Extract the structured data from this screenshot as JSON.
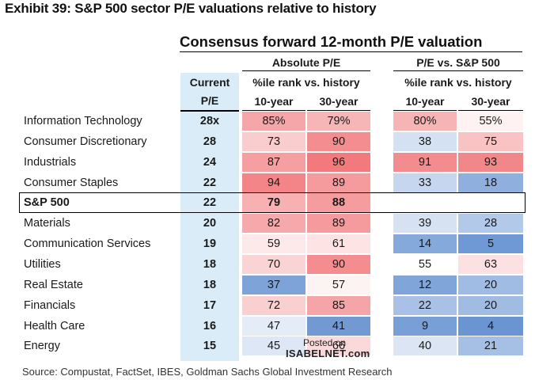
{
  "exhibit_title": "Exhibit 39: S&P 500 sector P/E valuations relative to history",
  "table_title": "Consensus forward 12-month P/E valuation",
  "headers": {
    "current_line1": "Current",
    "current_line2": "P/E",
    "absolute_group": "Absolute P/E",
    "relative_group": "P/E vs. S&P 500",
    "rank_sub": "%ile rank vs. history",
    "ten_year": "10-year",
    "thirty_year": "30-year"
  },
  "rows": [
    {
      "label": "Information Technology",
      "current": "28x",
      "abs10": "85%",
      "abs30": "79%",
      "rel10": "80%",
      "rel30": "55%",
      "colors": [
        "#f4a6a8",
        "#f6b5b6",
        "#f7b4b5",
        "#fff2f2"
      ]
    },
    {
      "label": "Consumer Discretionary",
      "current": "28",
      "abs10": "73",
      "abs30": "90",
      "rel10": "38",
      "rel30": "75",
      "colors": [
        "#f9cccd",
        "#f48d90",
        "#d4e1f2",
        "#f9c3c4"
      ]
    },
    {
      "label": "Industrials",
      "current": "24",
      "abs10": "87",
      "abs30": "96",
      "rel10": "91",
      "rel30": "93",
      "colors": [
        "#f59fa1",
        "#f27a7d",
        "#f38c8f",
        "#f2878a"
      ]
    },
    {
      "label": "Consumer Staples",
      "current": "22",
      "abs10": "94",
      "abs30": "89",
      "rel10": "33",
      "rel30": "18",
      "colors": [
        "#f38487",
        "#f59b9d",
        "#c5d6ee",
        "#8fb0de"
      ]
    },
    {
      "label": "S&P 500",
      "current": "22",
      "abs10": "79",
      "abs30": "88",
      "rel10": "",
      "rel30": "",
      "colors": [
        "#f7b1b3",
        "#f59c9e",
        "#ffffff",
        "#ffffff"
      ]
    },
    {
      "label": "Materials",
      "current": "20",
      "abs10": "82",
      "abs30": "89",
      "rel10": "39",
      "rel30": "28",
      "colors": [
        "#f6a9ab",
        "#f59b9d",
        "#d6e2f2",
        "#b3c9e9"
      ]
    },
    {
      "label": "Communication Services",
      "current": "19",
      "abs10": "59",
      "abs30": "61",
      "rel10": "14",
      "rel30": "5",
      "colors": [
        "#fde9e9",
        "#fde3e3",
        "#85a9da",
        "#6f99d4"
      ]
    },
    {
      "label": "Utilities",
      "current": "18",
      "abs10": "70",
      "abs30": "90",
      "rel10": "55",
      "rel30": "63",
      "colors": [
        "#fad3d4",
        "#f48d90",
        "#ffffff",
        "#fde0e1"
      ]
    },
    {
      "label": "Real Estate",
      "current": "18",
      "abs10": "37",
      "abs30": "57",
      "rel10": "12",
      "rel30": "20",
      "colors": [
        "#7ea3d8",
        "#fef3f3",
        "#80a5d9",
        "#a0bce3"
      ]
    },
    {
      "label": "Financials",
      "current": "17",
      "abs10": "72",
      "abs30": "85",
      "rel10": "22",
      "rel30": "20",
      "colors": [
        "#facfd0",
        "#f5a5a7",
        "#a9c1e6",
        "#a0bce3"
      ]
    },
    {
      "label": "Health Care",
      "current": "16",
      "abs10": "47",
      "abs30": "41",
      "rel10": "9",
      "rel30": "4",
      "colors": [
        "#e4ecf7",
        "#7399d3",
        "#789fd6",
        "#6a95d2"
      ]
    },
    {
      "label": "Energy",
      "current": "15",
      "abs10": "45",
      "abs30": "66",
      "rel10": "40",
      "rel30": "21",
      "colors": [
        "#dde7f5",
        "#fbd9da",
        "#dbe5f4",
        "#a6bfe5"
      ]
    }
  ],
  "watermark": {
    "line1": "Posted on",
    "line2": "ISABELNET.com"
  },
  "source": "Source: Compustat, FactSet, IBES, Goldman Sachs Global Investment Research"
}
